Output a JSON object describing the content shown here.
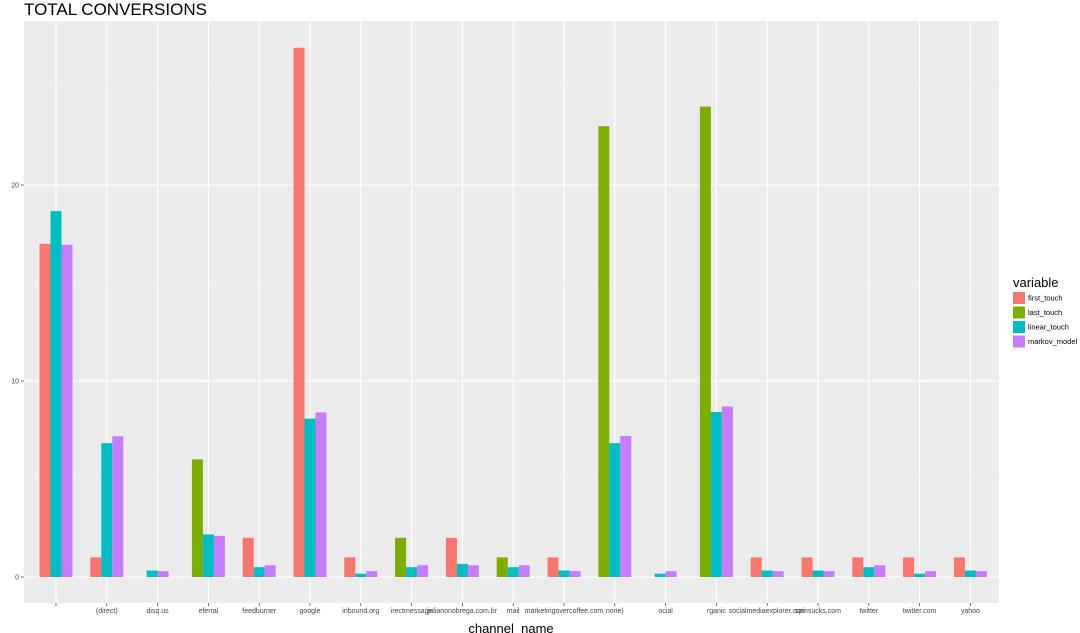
{
  "chart_data": {
    "type": "bar",
    "title": "TOTAL CONVERSIONS",
    "xlabel": "channel_name",
    "ylabel": "",
    "ylim": [
      0,
      28.3
    ],
    "yticks": [
      0,
      10,
      20
    ],
    "grid": true,
    "legend_position": "right",
    "legend_title": "variable",
    "categories": [
      "",
      "(direct)",
      "disq.us",
      "eferral",
      "feedburner",
      "google",
      "inbound.org",
      "irectmessage",
      "julianonobrega.com.br",
      "mail",
      "marketingovercoffee.com",
      "none)",
      "ocial",
      "rganic",
      "socialmediaexplorer.com",
      "spinsucks.com",
      "twitter",
      "twitter.com",
      "yahoo"
    ],
    "series": [
      {
        "name": "first_touch",
        "color": "#F8766D",
        "values": [
          17,
          1,
          0,
          0,
          2,
          27,
          1,
          0,
          2,
          0,
          1,
          0,
          0,
          0,
          1,
          1,
          1,
          1,
          1
        ]
      },
      {
        "name": "last_touch",
        "color": "#7CAE00",
        "values": [
          0,
          0,
          0,
          6,
          0,
          0,
          0,
          2,
          0,
          1,
          0,
          23,
          0,
          24,
          0,
          0,
          0,
          0,
          0
        ]
      },
      {
        "name": "linear_touch",
        "color": "#00BFC4",
        "values": [
          18.67,
          6.83,
          0.33,
          2.17,
          0.5,
          8.08,
          0.17,
          0.5,
          0.67,
          0.5,
          0.33,
          6.83,
          0.17,
          8.42,
          0.33,
          0.33,
          0.5,
          0.17,
          0.33
        ]
      },
      {
        "name": "markov_model",
        "color": "#C77CFF",
        "values": [
          16.95,
          7.18,
          0.3,
          2.1,
          0.6,
          8.4,
          0.3,
          0.6,
          0.6,
          0.6,
          0.3,
          7.2,
          0.3,
          8.7,
          0.3,
          0.3,
          0.6,
          0.3,
          0.3
        ]
      }
    ]
  }
}
